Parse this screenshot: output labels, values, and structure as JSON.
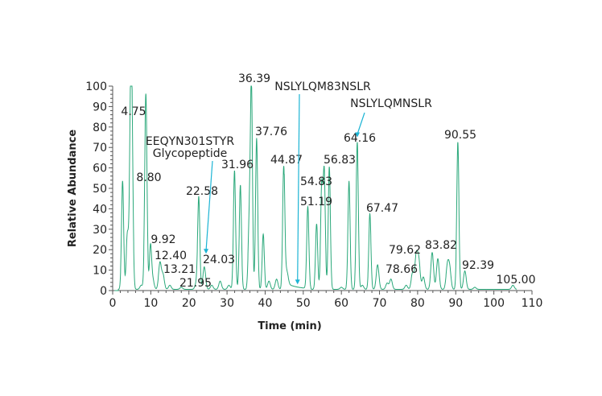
{
  "chart_data": {
    "type": "line",
    "xlabel": "Time (min)",
    "ylabel": "Relative Abundance",
    "xlim": [
      0,
      110
    ],
    "ylim": [
      0,
      100
    ],
    "xticks": [
      0,
      10,
      20,
      30,
      40,
      50,
      60,
      70,
      80,
      90,
      100,
      110
    ],
    "yticks": [
      0,
      10,
      20,
      30,
      40,
      50,
      60,
      70,
      80,
      90,
      100
    ],
    "grid": false,
    "line_color": "#2aa87a",
    "arrow_color": "#1cb4d4",
    "peaks": [
      {
        "rt": 2.6,
        "abundance": 53
      },
      {
        "rt": 3.8,
        "abundance": 22
      },
      {
        "rt": 4.3,
        "abundance": 14
      },
      {
        "rt": 4.75,
        "abundance": 84
      },
      {
        "rt": 5.1,
        "abundance": 58
      },
      {
        "rt": 7.5,
        "abundance": 2
      },
      {
        "rt": 8.6,
        "abundance": 50
      },
      {
        "rt": 8.8,
        "abundance": 52
      },
      {
        "rt": 9.92,
        "abundance": 21
      },
      {
        "rt": 10.5,
        "abundance": 5
      },
      {
        "rt": 12.4,
        "abundance": 13
      },
      {
        "rt": 13.21,
        "abundance": 7
      },
      {
        "rt": 15,
        "abundance": 2
      },
      {
        "rt": 18,
        "abundance": 1
      },
      {
        "rt": 21.95,
        "abundance": 3
      },
      {
        "rt": 22.58,
        "abundance": 45
      },
      {
        "rt": 24.03,
        "abundance": 11
      },
      {
        "rt": 26,
        "abundance": 2
      },
      {
        "rt": 28.2,
        "abundance": 4
      },
      {
        "rt": 30.5,
        "abundance": 2
      },
      {
        "rt": 31.96,
        "abundance": 58
      },
      {
        "rt": 33.5,
        "abundance": 51
      },
      {
        "rt": 35.8,
        "abundance": 30
      },
      {
        "rt": 36.39,
        "abundance": 100
      },
      {
        "rt": 37.76,
        "abundance": 74
      },
      {
        "rt": 39.5,
        "abundance": 27
      },
      {
        "rt": 41,
        "abundance": 4
      },
      {
        "rt": 43,
        "abundance": 5
      },
      {
        "rt": 44.87,
        "abundance": 60
      },
      {
        "rt": 45.7,
        "abundance": 6
      },
      {
        "rt": 51.19,
        "abundance": 40
      },
      {
        "rt": 53.5,
        "abundance": 32
      },
      {
        "rt": 54.83,
        "abundance": 50
      },
      {
        "rt": 55.5,
        "abundance": 57
      },
      {
        "rt": 56.83,
        "abundance": 60
      },
      {
        "rt": 60,
        "abundance": 1
      },
      {
        "rt": 62,
        "abundance": 53
      },
      {
        "rt": 64.16,
        "abundance": 72
      },
      {
        "rt": 65.5,
        "abundance": 2
      },
      {
        "rt": 67.47,
        "abundance": 37
      },
      {
        "rt": 69.5,
        "abundance": 12
      },
      {
        "rt": 72,
        "abundance": 3
      },
      {
        "rt": 73,
        "abundance": 5
      },
      {
        "rt": 77,
        "abundance": 2
      },
      {
        "rt": 78.66,
        "abundance": 8
      },
      {
        "rt": 79.62,
        "abundance": 16
      },
      {
        "rt": 80.3,
        "abundance": 14
      },
      {
        "rt": 81.5,
        "abundance": 6
      },
      {
        "rt": 83.82,
        "abundance": 18
      },
      {
        "rt": 85.3,
        "abundance": 15
      },
      {
        "rt": 87.8,
        "abundance": 11
      },
      {
        "rt": 88.4,
        "abundance": 10
      },
      {
        "rt": 90.55,
        "abundance": 72
      },
      {
        "rt": 92.39,
        "abundance": 9
      },
      {
        "rt": 95,
        "abundance": 1
      },
      {
        "rt": 105,
        "abundance": 2
      }
    ],
    "peak_labels": [
      "4.75",
      "8.80",
      "9.92",
      "12.40",
      "13.21",
      "21.95",
      "22.58",
      "24.03",
      "31.96",
      "36.39",
      "37.76",
      "44.87",
      "54.83",
      "51.19",
      "56.83",
      "64.16",
      "67.47",
      "79.62",
      "78.66",
      "83.82",
      "90.55",
      "92.39",
      "105.00"
    ],
    "annotations": [
      {
        "lines": [
          "EEQYN301STYR",
          "Glycopeptide"
        ],
        "target_rt": 24.5,
        "target_abundance": 18
      },
      {
        "lines": [
          "NSLYLQM83NSLR"
        ],
        "target_rt": 48.5,
        "target_abundance": 3
      },
      {
        "lines": [
          "NSLYLQMNSLR"
        ],
        "target_rt": 64.2,
        "target_abundance": 75
      }
    ]
  }
}
